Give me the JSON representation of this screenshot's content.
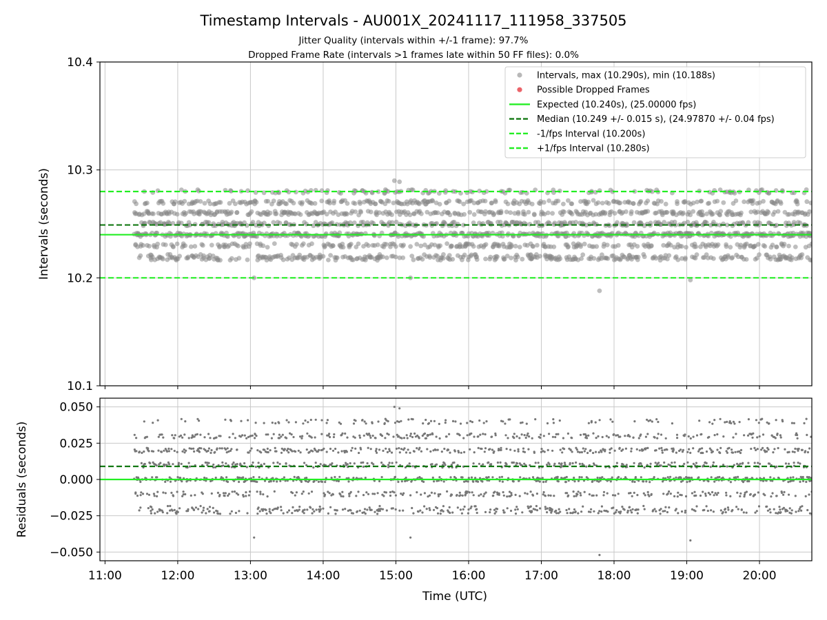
{
  "chart_data": {
    "type": "scatter",
    "title": "Timestamp Intervals - AU001X_20241117_111958_337505",
    "subtitle_1": "Jitter Quality (intervals within +/-1 frame): 97.7%",
    "subtitle_2": "Dropped Frame Rate (intervals >1 frames late within 50 FF files): 0.0%",
    "xlabel": "Time (UTC)",
    "x_range_hours": [
      10.93,
      20.72
    ],
    "x_ticks": [
      {
        "h": 11,
        "label": "11:00"
      },
      {
        "h": 12,
        "label": "12:00"
      },
      {
        "h": 13,
        "label": "13:00"
      },
      {
        "h": 14,
        "label": "14:00"
      },
      {
        "h": 15,
        "label": "15:00"
      },
      {
        "h": 16,
        "label": "16:00"
      },
      {
        "h": 17,
        "label": "17:00"
      },
      {
        "h": 18,
        "label": "18:00"
      },
      {
        "h": 19,
        "label": "19:00"
      },
      {
        "h": 20,
        "label": "20:00"
      }
    ],
    "data_start_hour": 11.4,
    "data_end_hour": 20.72,
    "top_panel": {
      "ylabel": "Intervals (seconds)",
      "ylim": [
        10.1,
        10.4
      ],
      "y_ticks": [
        {
          "v": 10.1,
          "label": "10.1"
        },
        {
          "v": 10.2,
          "label": "10.2"
        },
        {
          "v": 10.3,
          "label": "10.3"
        },
        {
          "v": 10.4,
          "label": "10.4"
        }
      ],
      "grid": true,
      "legend_position": "top-right",
      "legend": [
        {
          "label": "Intervals, max (10.290s), min (10.188s)",
          "kind": "marker",
          "color": "#888888"
        },
        {
          "label": "Possible Dropped Frames",
          "kind": "marker",
          "color": "#e8484f"
        },
        {
          "label": "Expected (10.240s), (25.00000 fps)",
          "kind": "solid",
          "color": "#22ee22"
        },
        {
          "label": "Median (10.249 +/- 0.015 s), (24.97870 +/- 0.04 fps)",
          "kind": "dashed",
          "color": "#117711"
        },
        {
          "label": "-1/fps Interval (10.200s)",
          "kind": "dashed",
          "color": "#22ee22"
        },
        {
          "label": "+1/fps Interval (10.280s)",
          "kind": "dashed",
          "color": "#22ee22"
        }
      ],
      "expected": 10.24,
      "median": 10.249,
      "lower_bound": 10.2,
      "upper_bound": 10.28,
      "max": 10.29,
      "min": 10.188
    },
    "bottom_panel": {
      "ylabel": "Residuals (seconds)",
      "ylim": [
        -0.056,
        0.056
      ],
      "y_ticks": [
        {
          "v": 0.05,
          "label": "0.050"
        },
        {
          "v": 0.025,
          "label": "0.025"
        },
        {
          "v": 0.0,
          "label": "0.000"
        },
        {
          "v": -0.025,
          "label": "−0.025"
        },
        {
          "v": -0.05,
          "label": "−0.050"
        }
      ],
      "zero_line": 0.0,
      "median_residual": 0.009,
      "grid": true
    },
    "colors": {
      "points": "#888888",
      "expected": "#22ee22",
      "median": "#117711",
      "bounds": "#22ee22",
      "grid": "#c8c8c8"
    },
    "point_levels": [
      10.218,
      10.22,
      10.23,
      10.24,
      10.25,
      10.26,
      10.27,
      10.28
    ],
    "point_level_weights": [
      0.1,
      0.07,
      0.12,
      0.22,
      0.14,
      0.17,
      0.12,
      0.06
    ],
    "extreme_points": [
      {
        "h": 14.98,
        "v": 10.29
      },
      {
        "h": 15.05,
        "v": 10.289
      },
      {
        "h": 17.8,
        "v": 10.188
      },
      {
        "h": 13.05,
        "v": 10.2
      },
      {
        "h": 15.2,
        "v": 10.2
      },
      {
        "h": 19.05,
        "v": 10.198
      }
    ]
  }
}
